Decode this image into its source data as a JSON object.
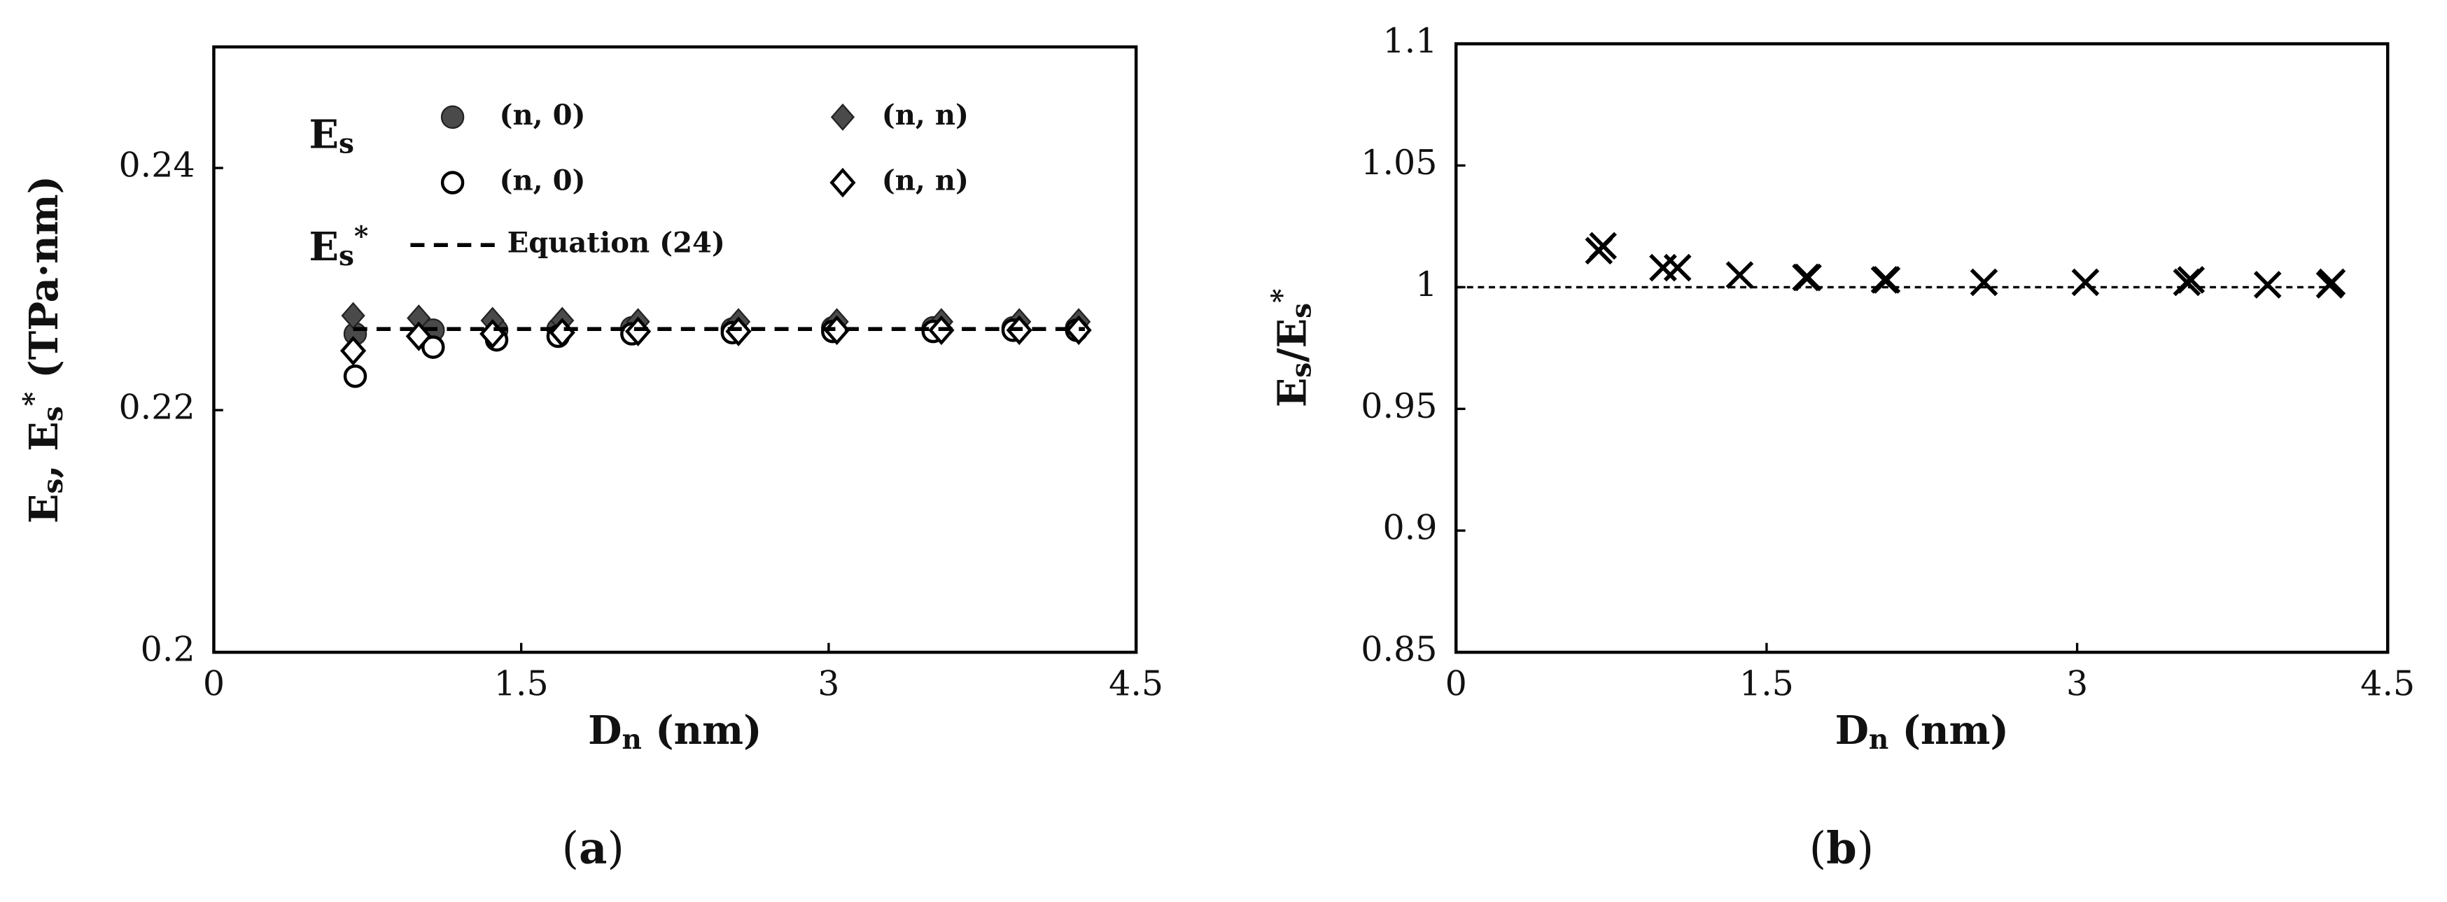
{
  "chart_data": [
    {
      "type": "scatter",
      "x_label": [
        "D",
        "n",
        " (nm)"
      ],
      "y_label": [
        "E",
        "s",
        ", E",
        "s",
        "*",
        " (TPa·nm)"
      ],
      "caption": [
        "(",
        "a",
        ")"
      ],
      "xlim": [
        0,
        4.5
      ],
      "xticks": [
        0,
        1.5,
        3,
        4.5
      ],
      "ylim": [
        0.2,
        0.25
      ],
      "yticks": [
        0.2,
        0.22,
        0.24
      ],
      "legend_groups": [
        [
          "E",
          "s"
        ],
        [
          "E",
          "s",
          "*"
        ]
      ],
      "series": [
        {
          "name": "(n, 0)",
          "marker": "circle-filled",
          "color": "#4a4a4a",
          "x": [
            0.69,
            1.07,
            1.38,
            1.68,
            2.04,
            2.53,
            3.02,
            3.51,
            3.9,
            4.21
          ],
          "values": [
            0.2263,
            0.2266,
            0.2266,
            0.2267,
            0.2268,
            0.2267,
            0.2268,
            0.2268,
            0.2268,
            0.2268
          ]
        },
        {
          "name": "(n, n)",
          "marker": "diamond-filled",
          "color": "#4a4a4a",
          "x": [
            0.68,
            1.0,
            1.36,
            1.7,
            2.07,
            2.56,
            3.04,
            3.55,
            3.93,
            4.22
          ],
          "values": [
            0.2278,
            0.2276,
            0.2274,
            0.2274,
            0.2273,
            0.2273,
            0.2273,
            0.2273,
            0.2273,
            0.2273
          ]
        },
        {
          "name": "(n, 0)",
          "marker": "circle-open",
          "color": "#000000",
          "x": [
            0.69,
            1.07,
            1.38,
            1.68,
            2.04,
            2.53,
            3.02,
            3.51,
            3.9,
            4.21
          ],
          "values": [
            0.2228,
            0.2252,
            0.2258,
            0.2261,
            0.2263,
            0.2264,
            0.2265,
            0.2265,
            0.2266,
            0.2266
          ]
        },
        {
          "name": "(n, n)",
          "marker": "diamond-open",
          "color": "#000000",
          "x": [
            0.68,
            1.0,
            1.36,
            1.7,
            2.07,
            2.56,
            3.04,
            3.55,
            3.93,
            4.22
          ],
          "values": [
            0.2249,
            0.2261,
            0.2263,
            0.2264,
            0.2265,
            0.2265,
            0.2266,
            0.2266,
            0.2266,
            0.2266
          ]
        },
        {
          "name": "Equation (24)",
          "marker": "dashed-line",
          "color": "#000000",
          "x": [
            0.68,
            4.25
          ],
          "values": [
            0.2267,
            0.2267
          ]
        }
      ]
    },
    {
      "type": "scatter",
      "x_label": [
        "D",
        "n",
        " (nm)"
      ],
      "y_label": [
        "E",
        "s",
        "/E",
        "s",
        "*"
      ],
      "caption": [
        "(",
        "b",
        ")"
      ],
      "xlim": [
        0,
        4.5
      ],
      "xticks": [
        0,
        1.5,
        3,
        4.5
      ],
      "ylim": [
        0.85,
        1.1
      ],
      "yticks": [
        0.85,
        0.9,
        0.95,
        1,
        1.05,
        1.1
      ],
      "series": [
        {
          "marker": "x",
          "color": "#000000",
          "x": [
            0.69,
            0.71,
            1.0,
            1.07,
            1.37,
            1.69,
            1.7,
            2.07,
            2.08,
            2.55,
            3.04,
            3.53,
            3.55,
            3.92,
            4.22,
            4.23
          ],
          "values": [
            1.015,
            1.017,
            1.008,
            1.008,
            1.005,
            1.004,
            1.004,
            1.003,
            1.003,
            1.002,
            1.002,
            1.002,
            1.003,
            1.001,
            1.001,
            1.002
          ]
        },
        {
          "marker": "dashed-line",
          "color": "#000000",
          "x": [
            0,
            4.25
          ],
          "values": [
            1,
            1
          ]
        }
      ]
    }
  ]
}
